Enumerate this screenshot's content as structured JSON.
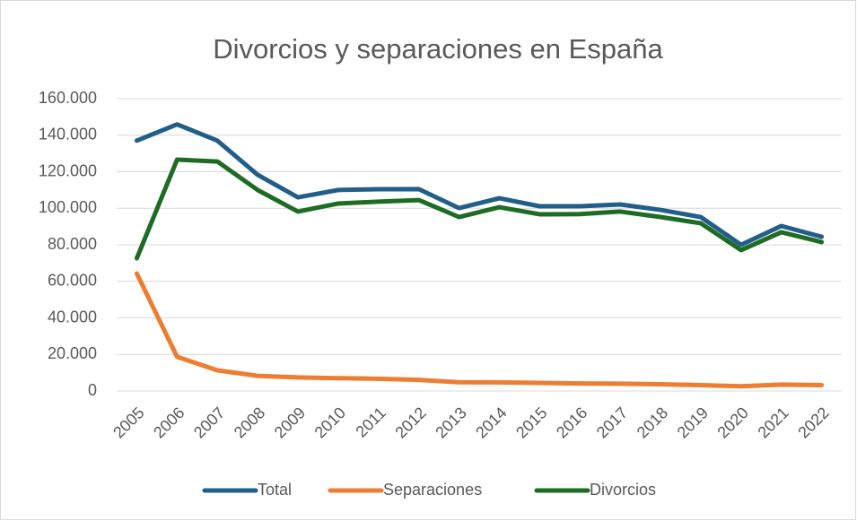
{
  "chart_data": {
    "type": "line",
    "title": "Divorcios y separaciones en España",
    "categories": [
      "2005",
      "2006",
      "2007",
      "2008",
      "2009",
      "2010",
      "2011",
      "2012",
      "2013",
      "2014",
      "2015",
      "2016",
      "2017",
      "2018",
      "2019",
      "2020",
      "2021",
      "2022"
    ],
    "series": [
      {
        "name": "Total",
        "color": "#215f8a",
        "values": [
          137000,
          145900,
          137000,
          118300,
          106000,
          110000,
          110400,
          110500,
          100100,
          105500,
          101100,
          101100,
          102100,
          99100,
          95200,
          80000,
          90300,
          84400
        ]
      },
      {
        "name": "Separaciones",
        "color": "#ed7d31",
        "values": [
          64300,
          18700,
          11300,
          8300,
          7400,
          7000,
          6700,
          6100,
          4800,
          4700,
          4400,
          4100,
          4000,
          3700,
          3200,
          2600,
          3500,
          3200
        ]
      },
      {
        "name": "Divorcios",
        "color": "#1e6b24",
        "values": [
          72600,
          126600,
          125600,
          110000,
          98200,
          102600,
          103600,
          104500,
          95200,
          100600,
          96700,
          96800,
          98200,
          95200,
          91800,
          77100,
          86900,
          81500
        ]
      }
    ],
    "ylim": [
      0,
      160000
    ],
    "yticks": [
      0,
      {
        "value": 20000,
        "label": "20.000"
      },
      {
        "value": 40000,
        "label": "40.000"
      },
      {
        "value": 60000,
        "label": "60.000"
      },
      {
        "value": 80000,
        "label": "80.000"
      },
      {
        "value": 100000,
        "label": "100.000"
      },
      {
        "value": 120000,
        "label": "120.000"
      },
      {
        "value": 140000,
        "label": "140.000"
      },
      {
        "value": 160000,
        "label": "160.000"
      }
    ],
    "grid": true,
    "legend": "bottom"
  }
}
